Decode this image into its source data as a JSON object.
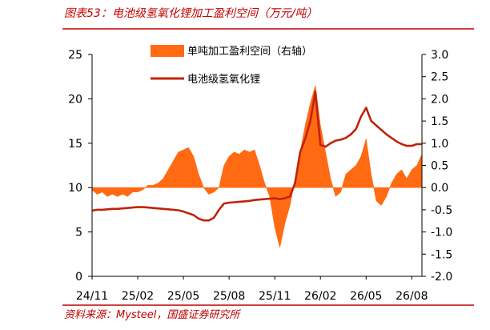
{
  "figure": {
    "title": "图表53：电池级氢氧化锂加工盈利空间（万元/吨）",
    "source": "资料来源：Mysteel，国盛证券研究所",
    "accent_color": "#C00000"
  },
  "chart_data": {
    "type": "line",
    "title": "图表53：电池级氢氧化锂加工盈利空间（万元/吨）",
    "xlim": [
      "2024-11-01",
      "2026-08-21"
    ],
    "x_ticks": [
      "24/11",
      "25/02",
      "25/05",
      "25/08",
      "25/11",
      "26/02",
      "26/05",
      "26/08"
    ],
    "y_left": {
      "range": [
        0,
        25
      ],
      "ticks": [
        "0",
        "5",
        "10",
        "15",
        "20",
        "25"
      ]
    },
    "y_right": {
      "range": [
        -2.0,
        3.0
      ],
      "ticks": [
        "-2.0",
        "-1.5",
        "-1.0",
        "-0.5",
        "0.0",
        "0.5",
        "1.0",
        "1.5",
        "2.0",
        "2.5",
        "3.0"
      ]
    },
    "grid": false,
    "legend_position": "top-left",
    "x": [
      "2024-11-01",
      "2024-11-11",
      "2024-11-21",
      "2024-12-01",
      "2024-12-11",
      "2024-12-21",
      "2025-01-01",
      "2025-01-11",
      "2025-01-21",
      "2025-02-01",
      "2025-02-11",
      "2025-02-21",
      "2025-03-01",
      "2025-03-11",
      "2025-03-21",
      "2025-04-01",
      "2025-04-11",
      "2025-04-21",
      "2025-05-01",
      "2025-05-11",
      "2025-05-21",
      "2025-06-01",
      "2025-06-11",
      "2025-06-21",
      "2025-07-01",
      "2025-07-11",
      "2025-07-21",
      "2025-08-01",
      "2025-08-11",
      "2025-08-21",
      "2025-09-01",
      "2025-09-11",
      "2025-09-21",
      "2025-10-01",
      "2025-10-11",
      "2025-10-21",
      "2025-11-01",
      "2025-11-11",
      "2025-11-21",
      "2025-12-01",
      "2025-12-11",
      "2025-12-21",
      "2026-01-01",
      "2026-01-11",
      "2026-01-21",
      "2026-02-01",
      "2026-02-11",
      "2026-02-21",
      "2026-03-01",
      "2026-03-11",
      "2026-03-21",
      "2026-04-01",
      "2026-04-11",
      "2026-04-21",
      "2026-05-01",
      "2026-05-11",
      "2026-05-21",
      "2026-06-01",
      "2026-06-11",
      "2026-06-21",
      "2026-07-01",
      "2026-07-11",
      "2026-07-21",
      "2026-08-01",
      "2026-08-11",
      "2026-08-21"
    ],
    "series": [
      {
        "name": "单吨加工盈利空间（右轴）",
        "axis": "right",
        "render": "area",
        "color": "#FF6A13",
        "values": [
          -0.05,
          -0.15,
          -0.1,
          -0.2,
          -0.15,
          -0.2,
          -0.15,
          -0.2,
          -0.1,
          -0.1,
          -0.05,
          0.05,
          0.05,
          0.1,
          0.2,
          0.4,
          0.6,
          0.8,
          0.85,
          0.9,
          0.7,
          0.3,
          0.0,
          -0.15,
          -0.1,
          0.0,
          0.5,
          0.7,
          0.8,
          0.75,
          0.85,
          0.8,
          0.85,
          0.5,
          0.1,
          -0.2,
          -0.9,
          -1.35,
          -0.8,
          -0.4,
          0.2,
          0.8,
          1.4,
          1.9,
          2.3,
          1.4,
          0.8,
          0.2,
          -0.2,
          -0.1,
          0.3,
          0.4,
          0.5,
          0.7,
          1.1,
          0.3,
          -0.3,
          -0.4,
          -0.2,
          0.1,
          0.3,
          0.4,
          0.2,
          0.4,
          0.5,
          0.75
        ]
      },
      {
        "name": "电池级氢氧化锂",
        "axis": "left",
        "render": "line",
        "color": "#C0230A",
        "values": [
          7.4,
          7.5,
          7.5,
          7.55,
          7.6,
          7.6,
          7.65,
          7.7,
          7.75,
          7.8,
          7.8,
          7.75,
          7.7,
          7.65,
          7.6,
          7.55,
          7.5,
          7.45,
          7.3,
          7.1,
          6.9,
          6.5,
          6.3,
          6.3,
          6.6,
          7.5,
          8.2,
          8.3,
          8.35,
          8.4,
          8.45,
          8.5,
          8.6,
          8.65,
          8.7,
          8.75,
          8.8,
          8.7,
          8.8,
          9.0,
          10.5,
          14.0,
          15.5,
          17.5,
          20.8,
          14.8,
          14.6,
          15.0,
          15.3,
          15.4,
          15.6,
          16.0,
          16.6,
          18.0,
          19.0,
          17.5,
          17.0,
          16.5,
          16.0,
          15.6,
          15.2,
          14.9,
          14.7,
          14.7,
          14.9,
          14.9
        ]
      }
    ]
  }
}
